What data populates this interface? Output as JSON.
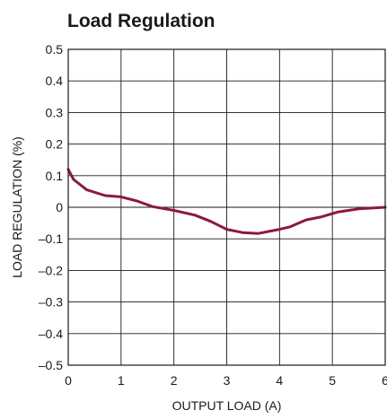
{
  "chart_data": {
    "type": "line",
    "title": "Load Regulation",
    "xlabel": "OUTPUT LOAD (A)",
    "ylabel": "LOAD REGULATION (%)",
    "xlim": [
      0,
      6
    ],
    "ylim": [
      -0.5,
      0.5
    ],
    "x_ticks": [
      0,
      1,
      2,
      3,
      4,
      5,
      6
    ],
    "x_tick_labels": [
      "0",
      "1",
      "2",
      "3",
      "4",
      "5",
      "6"
    ],
    "y_ticks": [
      0.5,
      0.4,
      0.3,
      0.2,
      0.1,
      0,
      -0.1,
      -0.2,
      -0.3,
      -0.4,
      -0.5
    ],
    "y_tick_labels": [
      "0.5",
      "0.4",
      "0.3",
      "0.2",
      "0.1",
      "0",
      "–0.1",
      "–0.2",
      "–0.3",
      "–0.4",
      "–0.5"
    ],
    "grid": true,
    "series": [
      {
        "color": "#8b1a3a",
        "x": [
          0,
          0.1,
          0.35,
          0.7,
          1.0,
          1.3,
          1.6,
          2.0,
          2.4,
          2.7,
          3.0,
          3.3,
          3.6,
          4.0,
          4.2,
          4.5,
          4.8,
          5.1,
          5.5,
          6.0
        ],
        "y": [
          0.12,
          0.088,
          0.055,
          0.037,
          0.033,
          0.02,
          0.002,
          -0.01,
          -0.025,
          -0.045,
          -0.07,
          -0.08,
          -0.083,
          -0.07,
          -0.062,
          -0.04,
          -0.03,
          -0.015,
          -0.005,
          0.0
        ]
      }
    ]
  }
}
